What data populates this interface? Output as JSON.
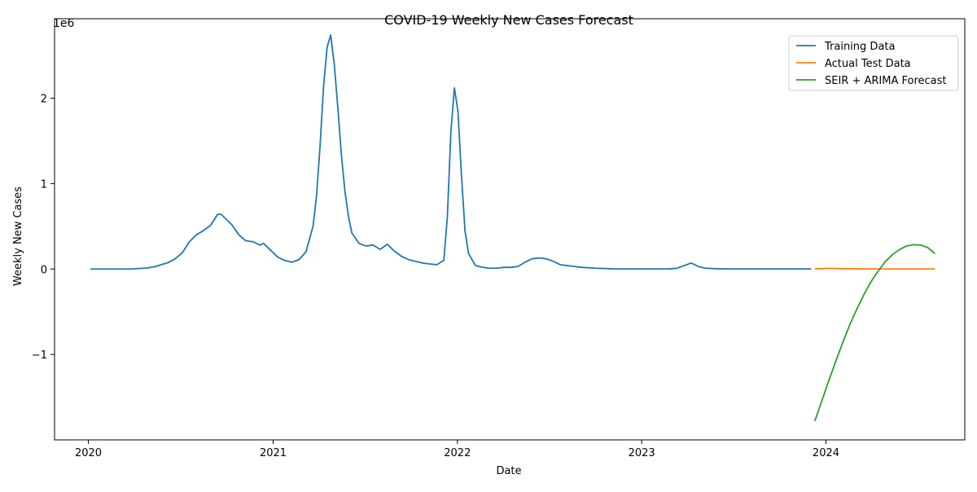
{
  "chart_data": {
    "type": "line",
    "title": "COVID-19 Weekly New Cases Forecast",
    "xlabel": "Date",
    "ylabel": "Weekly New Cases",
    "y_offset_label": "1e6",
    "xlim": [
      "2019-10-26",
      "2024-10-02"
    ],
    "ylim": [
      -2.0,
      2.93
    ],
    "y_unit_scale": 1000000,
    "x_ticks": [
      {
        "date": "2020-01-01",
        "label": "2020"
      },
      {
        "date": "2021-01-01",
        "label": "2021"
      },
      {
        "date": "2022-01-01",
        "label": "2022"
      },
      {
        "date": "2023-01-01",
        "label": "2023"
      },
      {
        "date": "2024-01-01",
        "label": "2024"
      }
    ],
    "y_ticks": [
      {
        "value": -1,
        "label": "−1"
      },
      {
        "value": 0,
        "label": "0"
      },
      {
        "value": 1,
        "label": "1"
      },
      {
        "value": 2,
        "label": "2"
      }
    ],
    "grid": false,
    "legend_position": "top-right",
    "series": [
      {
        "name": "Training Data",
        "color": "#1f77b4",
        "points": [
          [
            "2020-01-05",
            0
          ],
          [
            "2020-02-02",
            0
          ],
          [
            "2020-03-01",
            0
          ],
          [
            "2020-03-29",
            0.001
          ],
          [
            "2020-04-26",
            0.012
          ],
          [
            "2020-05-10",
            0.025
          ],
          [
            "2020-05-24",
            0.05
          ],
          [
            "2020-06-07",
            0.075
          ],
          [
            "2020-06-21",
            0.12
          ],
          [
            "2020-07-05",
            0.19
          ],
          [
            "2020-07-19",
            0.32
          ],
          [
            "2020-08-02",
            0.4
          ],
          [
            "2020-08-16",
            0.45
          ],
          [
            "2020-08-30",
            0.51
          ],
          [
            "2020-09-13",
            0.64
          ],
          [
            "2020-09-20",
            0.64
          ],
          [
            "2020-09-27",
            0.6
          ],
          [
            "2020-10-11",
            0.52
          ],
          [
            "2020-10-25",
            0.4
          ],
          [
            "2020-11-08",
            0.33
          ],
          [
            "2020-11-22",
            0.32
          ],
          [
            "2020-12-06",
            0.28
          ],
          [
            "2020-12-13",
            0.3
          ],
          [
            "2020-12-27",
            0.22
          ],
          [
            "2021-01-10",
            0.14
          ],
          [
            "2021-01-24",
            0.1
          ],
          [
            "2021-02-07",
            0.08
          ],
          [
            "2021-02-21",
            0.11
          ],
          [
            "2021-03-07",
            0.2
          ],
          [
            "2021-03-21",
            0.5
          ],
          [
            "2021-03-28",
            0.86
          ],
          [
            "2021-04-04",
            1.45
          ],
          [
            "2021-04-11",
            2.15
          ],
          [
            "2021-04-18",
            2.6
          ],
          [
            "2021-04-25",
            2.74
          ],
          [
            "2021-05-02",
            2.4
          ],
          [
            "2021-05-09",
            1.9
          ],
          [
            "2021-05-16",
            1.35
          ],
          [
            "2021-05-23",
            0.92
          ],
          [
            "2021-05-30",
            0.62
          ],
          [
            "2021-06-06",
            0.42
          ],
          [
            "2021-06-20",
            0.3
          ],
          [
            "2021-07-04",
            0.27
          ],
          [
            "2021-07-18",
            0.28
          ],
          [
            "2021-08-01",
            0.23
          ],
          [
            "2021-08-15",
            0.29
          ],
          [
            "2021-08-29",
            0.21
          ],
          [
            "2021-09-12",
            0.15
          ],
          [
            "2021-09-26",
            0.11
          ],
          [
            "2021-10-10",
            0.09
          ],
          [
            "2021-10-24",
            0.07
          ],
          [
            "2021-11-07",
            0.06
          ],
          [
            "2021-11-21",
            0.05
          ],
          [
            "2021-12-05",
            0.1
          ],
          [
            "2021-12-12",
            0.6
          ],
          [
            "2021-12-19",
            1.6
          ],
          [
            "2021-12-26",
            2.12
          ],
          [
            "2022-01-02",
            1.85
          ],
          [
            "2022-01-09",
            1.1
          ],
          [
            "2022-01-16",
            0.45
          ],
          [
            "2022-01-23",
            0.18
          ],
          [
            "2022-02-06",
            0.04
          ],
          [
            "2022-02-20",
            0.02
          ],
          [
            "2022-03-06",
            0.01
          ],
          [
            "2022-03-20",
            0.01
          ],
          [
            "2022-04-03",
            0.02
          ],
          [
            "2022-04-17",
            0.02
          ],
          [
            "2022-05-01",
            0.03
          ],
          [
            "2022-05-15",
            0.08
          ],
          [
            "2022-05-29",
            0.12
          ],
          [
            "2022-06-12",
            0.13
          ],
          [
            "2022-06-26",
            0.12
          ],
          [
            "2022-07-10",
            0.09
          ],
          [
            "2022-07-24",
            0.05
          ],
          [
            "2022-08-07",
            0.04
          ],
          [
            "2022-08-21",
            0.03
          ],
          [
            "2022-09-04",
            0.02
          ],
          [
            "2022-10-02",
            0.01
          ],
          [
            "2022-11-06",
            0.002
          ],
          [
            "2022-12-04",
            0.001
          ],
          [
            "2023-01-01",
            0.001
          ],
          [
            "2023-01-29",
            0.001
          ],
          [
            "2023-02-26",
            0.002
          ],
          [
            "2023-03-12",
            0.01
          ],
          [
            "2023-03-26",
            0.04
          ],
          [
            "2023-04-09",
            0.07
          ],
          [
            "2023-04-23",
            0.03
          ],
          [
            "2023-05-07",
            0.01
          ],
          [
            "2023-06-04",
            0.002
          ],
          [
            "2023-07-02",
            0.001
          ],
          [
            "2023-08-06",
            0.001
          ],
          [
            "2023-09-03",
            0.001
          ],
          [
            "2023-10-01",
            0.001
          ],
          [
            "2023-11-05",
            0.001
          ],
          [
            "2023-12-03",
            0.001
          ]
        ]
      },
      {
        "name": "Actual Test Data",
        "color": "#ff7f0e",
        "points": [
          [
            "2023-12-10",
            0.002
          ],
          [
            "2024-01-07",
            0.008
          ],
          [
            "2024-02-04",
            0.004
          ],
          [
            "2024-03-03",
            0.002
          ],
          [
            "2024-04-07",
            0.001
          ],
          [
            "2024-05-05",
            0.001
          ],
          [
            "2024-06-02",
            0.001
          ],
          [
            "2024-07-07",
            0.001
          ],
          [
            "2024-08-04",
            0.001
          ]
        ]
      },
      {
        "name": "SEIR + ARIMA Forecast",
        "color": "#2ca02c",
        "points": [
          [
            "2023-12-10",
            -1.78
          ],
          [
            "2023-12-24",
            -1.54
          ],
          [
            "2024-01-07",
            -1.3
          ],
          [
            "2024-01-21",
            -1.07
          ],
          [
            "2024-02-04",
            -0.85
          ],
          [
            "2024-02-18",
            -0.64
          ],
          [
            "2024-03-03",
            -0.46
          ],
          [
            "2024-03-17",
            -0.29
          ],
          [
            "2024-03-31",
            -0.14
          ],
          [
            "2024-04-14",
            -0.02
          ],
          [
            "2024-04-28",
            0.09
          ],
          [
            "2024-05-12",
            0.17
          ],
          [
            "2024-05-26",
            0.23
          ],
          [
            "2024-06-09",
            0.27
          ],
          [
            "2024-06-23",
            0.285
          ],
          [
            "2024-07-07",
            0.28
          ],
          [
            "2024-07-21",
            0.25
          ],
          [
            "2024-08-04",
            0.18
          ]
        ]
      }
    ]
  }
}
